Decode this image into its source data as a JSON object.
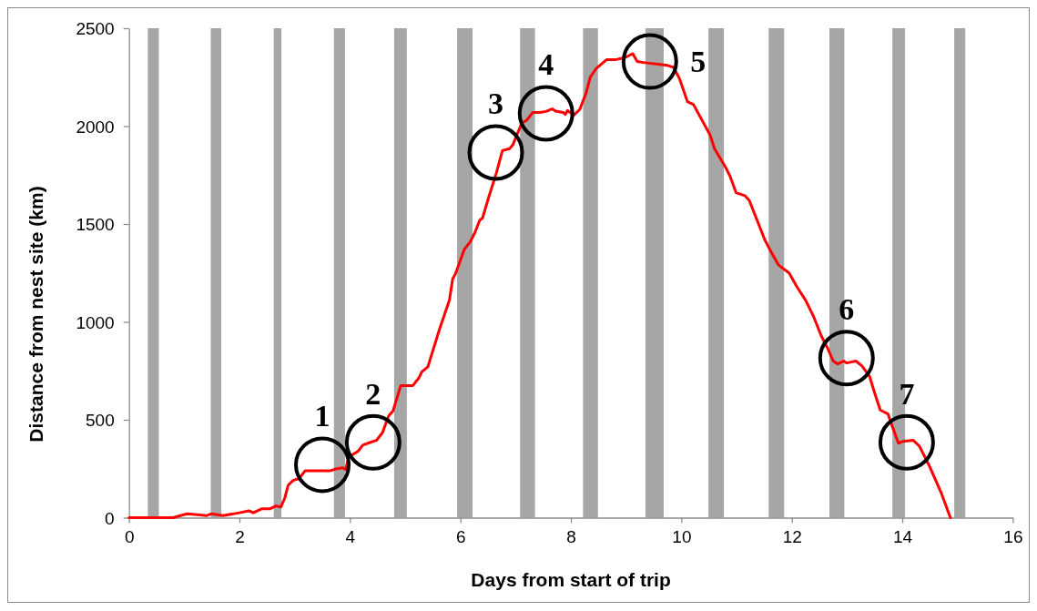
{
  "chart_data": {
    "type": "line",
    "xlabel": "Days from start of trip",
    "ylabel": "Distance from nest site (km)",
    "xlim": [
      0,
      16
    ],
    "xticks": [
      0,
      2,
      4,
      6,
      8,
      10,
      12,
      14,
      16
    ],
    "ylim": [
      0,
      2500
    ],
    "yticks": [
      0,
      500,
      1000,
      1500,
      2000,
      2500
    ],
    "color": "#ff0000",
    "x": [
      0,
      0.8,
      1.05,
      1.24,
      1.4,
      1.5,
      1.7,
      2.0,
      2.17,
      2.25,
      2.4,
      2.55,
      2.66,
      2.75,
      2.82,
      2.88,
      2.97,
      3.08,
      3.19,
      3.65,
      3.76,
      3.87,
      3.92,
      3.98,
      4.15,
      4.23,
      4.37,
      4.48,
      4.59,
      4.7,
      4.78,
      4.92,
      5.14,
      5.25,
      5.3,
      5.41,
      5.58,
      5.63,
      5.8,
      5.86,
      5.91,
      6.07,
      6.18,
      6.26,
      6.35,
      6.4,
      6.51,
      6.65,
      6.76,
      6.89,
      6.95,
      7.11,
      7.2,
      7.31,
      7.44,
      7.55,
      7.66,
      7.72,
      7.86,
      7.9,
      7.94,
      8.05,
      8.16,
      8.27,
      8.35,
      8.46,
      8.65,
      8.82,
      8.98,
      9.12,
      9.2,
      9.31,
      9.75,
      9.86,
      9.97,
      10.11,
      10.22,
      10.52,
      10.6,
      10.8,
      10.88,
      10.99,
      11.15,
      11.23,
      11.51,
      11.62,
      11.76,
      11.95,
      12.09,
      12.25,
      12.39,
      12.53,
      12.64,
      12.75,
      12.83,
      12.94,
      12.99,
      13.16,
      13.27,
      13.41,
      13.49,
      13.6,
      13.74,
      13.82,
      13.93,
      14.01,
      14.2,
      14.31,
      14.48,
      14.7,
      14.87
    ],
    "values": [
      0,
      0,
      20,
      15,
      10,
      20,
      10,
      25,
      35,
      25,
      45,
      45,
      60,
      55,
      100,
      165,
      190,
      200,
      240,
      240,
      250,
      255,
      245,
      310,
      340,
      370,
      385,
      395,
      435,
      520,
      545,
      675,
      675,
      715,
      745,
      770,
      925,
      970,
      1110,
      1220,
      1245,
      1370,
      1410,
      1455,
      1520,
      1530,
      1635,
      1760,
      1875,
      1885,
      1905,
      2015,
      2030,
      2070,
      2070,
      2075,
      2088,
      2077,
      2070,
      2060,
      2080,
      2055,
      2085,
      2165,
      2250,
      2295,
      2340,
      2340,
      2350,
      2370,
      2330,
      2325,
      2310,
      2300,
      2240,
      2125,
      2110,
      1955,
      1885,
      1790,
      1745,
      1660,
      1645,
      1620,
      1420,
      1360,
      1290,
      1250,
      1180,
      1110,
      1030,
      930,
      870,
      800,
      785,
      800,
      790,
      800,
      775,
      720,
      645,
      550,
      530,
      465,
      380,
      390,
      395,
      365,
      270,
      130,
      0
    ],
    "bands": [
      {
        "axis": "x",
        "from": 0.34,
        "to": 0.54,
        "color": "#a6a6a6"
      },
      {
        "axis": "x",
        "from": 1.48,
        "to": 1.67,
        "color": "#a6a6a6"
      },
      {
        "axis": "x",
        "from": 2.62,
        "to": 2.76,
        "color": "#a6a6a6"
      },
      {
        "axis": "x",
        "from": 3.71,
        "to": 3.91,
        "color": "#a6a6a6"
      },
      {
        "axis": "x",
        "from": 4.8,
        "to": 5.03,
        "color": "#a6a6a6"
      },
      {
        "axis": "x",
        "from": 5.94,
        "to": 6.22,
        "color": "#a6a6a6"
      },
      {
        "axis": "x",
        "from": 7.08,
        "to": 7.35,
        "color": "#a6a6a6"
      },
      {
        "axis": "x",
        "from": 8.22,
        "to": 8.49,
        "color": "#a6a6a6"
      },
      {
        "axis": "x",
        "from": 9.35,
        "to": 9.68,
        "color": "#a6a6a6"
      },
      {
        "axis": "x",
        "from": 10.49,
        "to": 10.77,
        "color": "#a6a6a6"
      },
      {
        "axis": "x",
        "from": 11.58,
        "to": 11.86,
        "color": "#a6a6a6"
      },
      {
        "axis": "x",
        "from": 12.68,
        "to": 12.95,
        "color": "#a6a6a6"
      },
      {
        "axis": "x",
        "from": 13.82,
        "to": 14.05,
        "color": "#a6a6a6"
      },
      {
        "axis": "x",
        "from": 14.94,
        "to": 15.14,
        "color": "#a6a6a6"
      }
    ],
    "annotations": [
      {
        "text": "1",
        "x": 3.5,
        "y": 270
      },
      {
        "text": "2",
        "x": 4.42,
        "y": 385
      },
      {
        "text": "3",
        "x": 6.64,
        "y": 1865
      },
      {
        "text": "4",
        "x": 7.55,
        "y": 2065
      },
      {
        "text": "5",
        "x": 9.43,
        "y": 2330
      },
      {
        "text": "6",
        "x": 12.99,
        "y": 815
      },
      {
        "text": "7",
        "x": 14.08,
        "y": 385
      }
    ]
  }
}
